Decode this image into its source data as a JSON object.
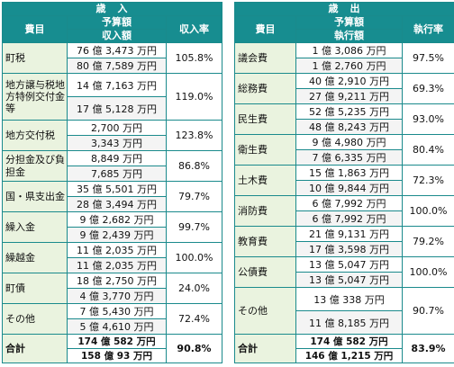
{
  "revenue": {
    "title": "歳　入",
    "col_item": "費目",
    "col_budget": "予算額",
    "col_actual": "収入額",
    "col_rate": "収入率",
    "rows": [
      {
        "name": "町税",
        "budget": "76 億 3,473 万円",
        "actual": "80 億 7,589 万円",
        "rate": "105.8%"
      },
      {
        "name": "地方譲与税地方特例交付金等",
        "budget": "14 億 7,163 万円",
        "actual": "17 億 5,128 万円",
        "rate": "119.0%"
      },
      {
        "name": "地方交付税",
        "budget": "2,700 万円",
        "actual": "3,343 万円",
        "rate": "123.8%"
      },
      {
        "name": "分担金及び負担金",
        "budget": "8,849 万円",
        "actual": "7,685 万円",
        "rate": "86.8%"
      },
      {
        "name": "国・県支出金",
        "budget": "35 億 5,501 万円",
        "actual": "28 億 3,494 万円",
        "rate": "79.7%"
      },
      {
        "name": "繰入金",
        "budget": "9 億 2,682 万円",
        "actual": "9 億 2,439 万円",
        "rate": "99.7%"
      },
      {
        "name": "繰越金",
        "budget": "11 億 2,035 万円",
        "actual": "11 億 2,035 万円",
        "rate": "100.0%"
      },
      {
        "name": "町債",
        "budget": "18 億 2,750 万円",
        "actual": "4 億 3,770 万円",
        "rate": "24.0%"
      },
      {
        "name": "その他",
        "budget": "7 億 5,430 万円",
        "actual": "5 億 4,610 万円",
        "rate": "72.4%"
      }
    ],
    "total": {
      "name": "合計",
      "budget": "174 億 582 万円",
      "actual": "158 億 93 万円",
      "rate": "90.8%"
    }
  },
  "expenditure": {
    "title": "歳　出",
    "col_item": "費目",
    "col_budget": "予算額",
    "col_actual": "執行額",
    "col_rate": "執行率",
    "rows": [
      {
        "name": "議会費",
        "budget": "1 億 3,086 万円",
        "actual": "1 億 2,760 万円",
        "rate": "97.5%"
      },
      {
        "name": "総務費",
        "budget": "40 億 2,910 万円",
        "actual": "27 億 9,211 万円",
        "rate": "69.3%"
      },
      {
        "name": "民生費",
        "budget": "52 億 5,235 万円",
        "actual": "48 億 8,243 万円",
        "rate": "93.0%"
      },
      {
        "name": "衛生費",
        "budget": "9 億 4,980 万円",
        "actual": "7 億 6,335 万円",
        "rate": "80.4%"
      },
      {
        "name": "土木費",
        "budget": "15 億 1,863 万円",
        "actual": "10 億 9,844 万円",
        "rate": "72.3%"
      },
      {
        "name": "消防費",
        "budget": "6 億 7,992 万円",
        "actual": "6 億 7,992 万円",
        "rate": "100.0%"
      },
      {
        "name": "教育費",
        "budget": "21 億 9,131 万円",
        "actual": "17 億 3,598 万円",
        "rate": "79.2%"
      },
      {
        "name": "公債費",
        "budget": "13 億 5,047 万円",
        "actual": "13 億 5,047 万円",
        "rate": "100.0%"
      },
      {
        "name": "その他",
        "budget": "13 億 338 万円",
        "actual": "11 億 8,185 万円",
        "rate": "90.7%"
      }
    ],
    "total": {
      "name": "合計",
      "budget": "174 億 582 万円",
      "actual": "146 億 1,215 万円",
      "rate": "83.9%"
    }
  }
}
